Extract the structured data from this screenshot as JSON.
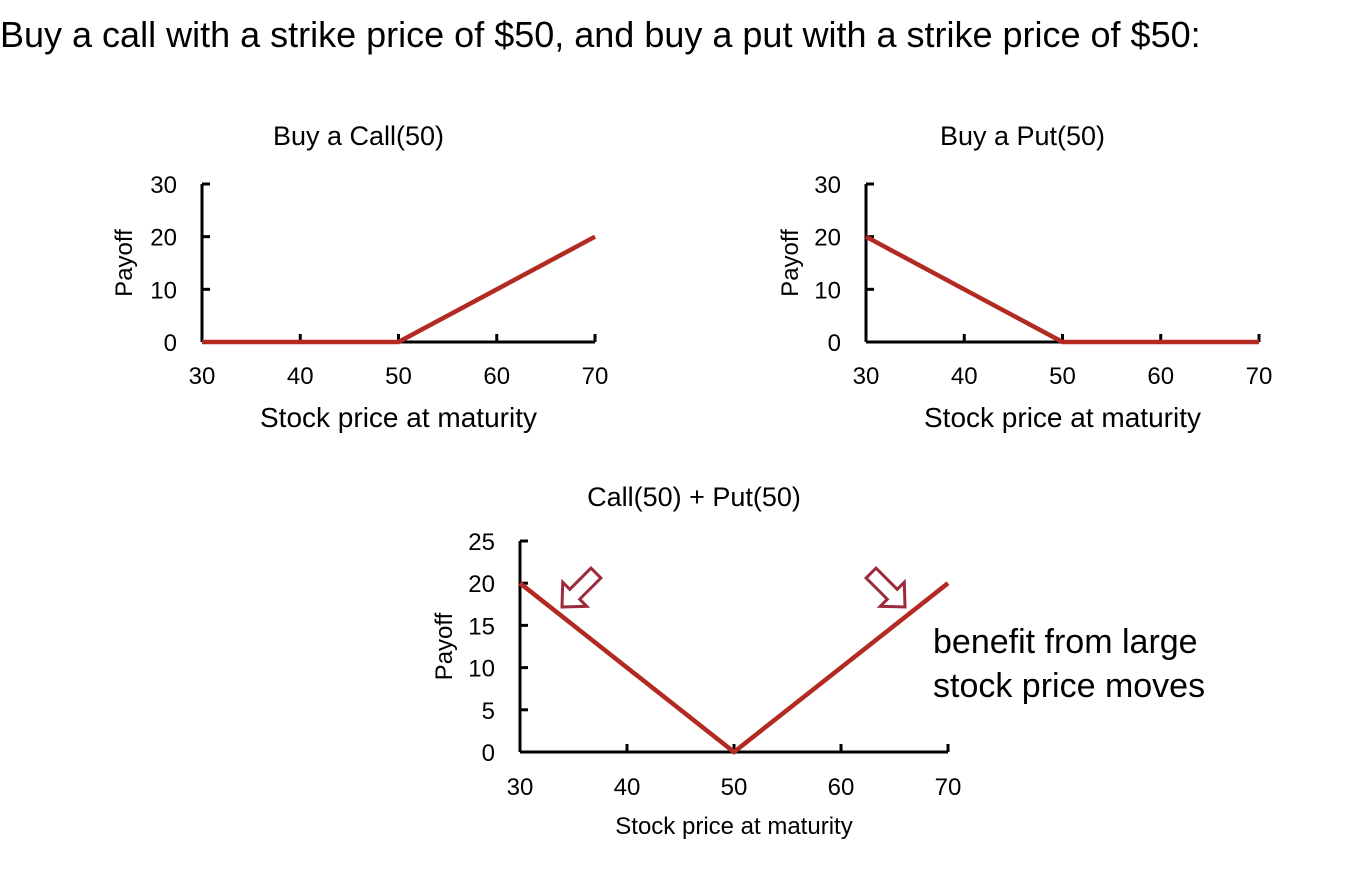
{
  "heading": "Buy a call with a strike price of $50, and buy a put with a strike price of $50:",
  "annotation": {
    "line1": "benefit from large",
    "line2": "stock price moves"
  },
  "colors": {
    "series": "#B22A22",
    "arrow": "#9B2B3D",
    "axis": "#000000"
  },
  "chart_data": [
    {
      "type": "line",
      "title": "Buy a Call(50)",
      "xlabel": "Stock price at maturity",
      "ylabel": "Payoff",
      "xlim": [
        30,
        70
      ],
      "ylim": [
        0,
        30
      ],
      "xticks": [
        30,
        40,
        50,
        60,
        70
      ],
      "yticks": [
        0,
        10,
        20,
        30
      ],
      "grid": false,
      "legend": "none",
      "series": [
        {
          "x": [
            30,
            50,
            70
          ],
          "y": [
            0,
            0,
            20
          ]
        }
      ]
    },
    {
      "type": "line",
      "title": "Buy a Put(50)",
      "xlabel": "Stock price at maturity",
      "ylabel": "Payoff",
      "xlim": [
        30,
        70
      ],
      "ylim": [
        0,
        30
      ],
      "xticks": [
        30,
        40,
        50,
        60,
        70
      ],
      "yticks": [
        0,
        10,
        20,
        30
      ],
      "grid": false,
      "legend": "none",
      "series": [
        {
          "x": [
            30,
            50,
            70
          ],
          "y": [
            20,
            0,
            0
          ]
        }
      ]
    },
    {
      "type": "line",
      "title": "Call(50) + Put(50)",
      "xlabel": "Stock price at maturity",
      "ylabel": "Payoff",
      "xlim": [
        30,
        70
      ],
      "ylim": [
        0,
        25
      ],
      "xticks": [
        30,
        40,
        50,
        60,
        70
      ],
      "yticks": [
        0,
        5,
        10,
        15,
        20,
        25
      ],
      "grid": false,
      "legend": "none",
      "series": [
        {
          "x": [
            30,
            50,
            70
          ],
          "y": [
            20,
            0,
            20
          ]
        }
      ]
    }
  ]
}
